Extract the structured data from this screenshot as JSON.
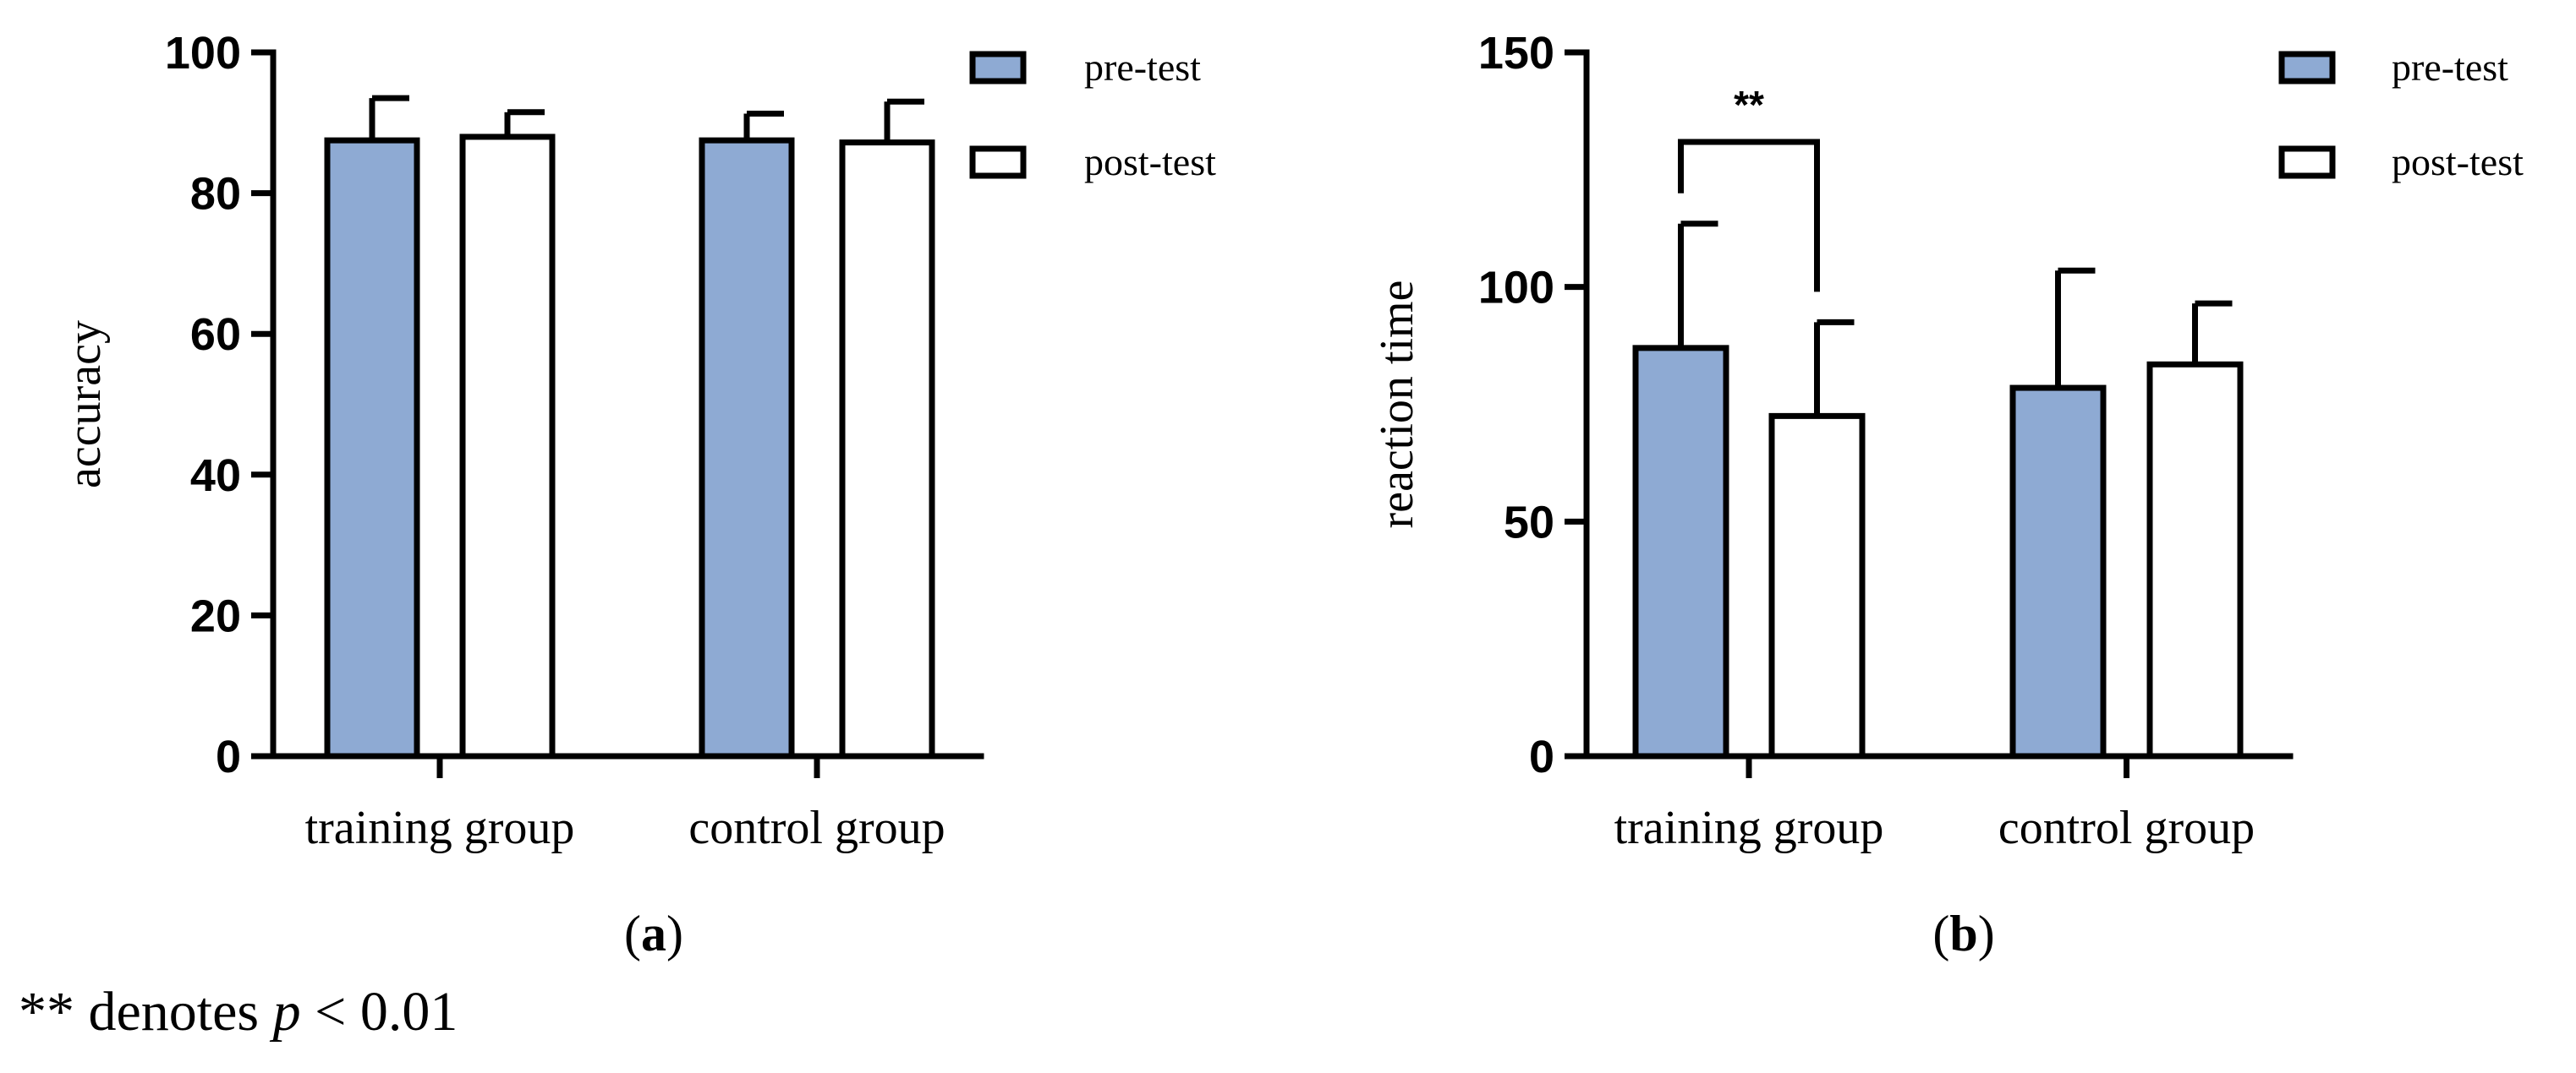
{
  "chart_data": [
    {
      "type": "bar",
      "panel": "a",
      "categories": [
        "training group",
        "control group"
      ],
      "series": [
        {
          "name": "pre-test",
          "values": [
            87.5,
            87.5
          ],
          "errors": [
            6,
            3.8
          ]
        },
        {
          "name": "post-test",
          "values": [
            88,
            87.2
          ],
          "errors": [
            3.5,
            5.8
          ]
        }
      ],
      "xlabel": "",
      "ylabel": "accuracy",
      "ylim": [
        0,
        100
      ],
      "yticks": [
        0,
        20,
        40,
        60,
        80,
        100
      ],
      "legend": [
        "pre-test",
        "post-test"
      ],
      "legend_position": "top-right",
      "significance": []
    },
    {
      "type": "bar",
      "panel": "b",
      "categories": [
        "training group",
        "control group"
      ],
      "series": [
        {
          "name": "pre-test",
          "values": [
            87,
            78.5
          ],
          "errors": [
            26.5,
            25
          ]
        },
        {
          "name": "post-test",
          "values": [
            72.5,
            83.5
          ],
          "errors": [
            20,
            13
          ]
        }
      ],
      "xlabel": "",
      "ylabel": "reaction time",
      "ylim": [
        0,
        150
      ],
      "yticks": [
        0,
        50,
        100,
        150
      ],
      "legend": [
        "pre-test",
        "post-test"
      ],
      "legend_position": "top-right",
      "significance": [
        {
          "category": "training group",
          "label": "**"
        }
      ]
    }
  ],
  "panel_labels": [
    "a",
    "b"
  ],
  "footnote": {
    "prefix": "** denotes ",
    "var": "p",
    "suffix": " < 0.01"
  },
  "colors": {
    "pre_test": "#8eaad3",
    "post_test": "#ffffff",
    "axis": "#000000"
  }
}
